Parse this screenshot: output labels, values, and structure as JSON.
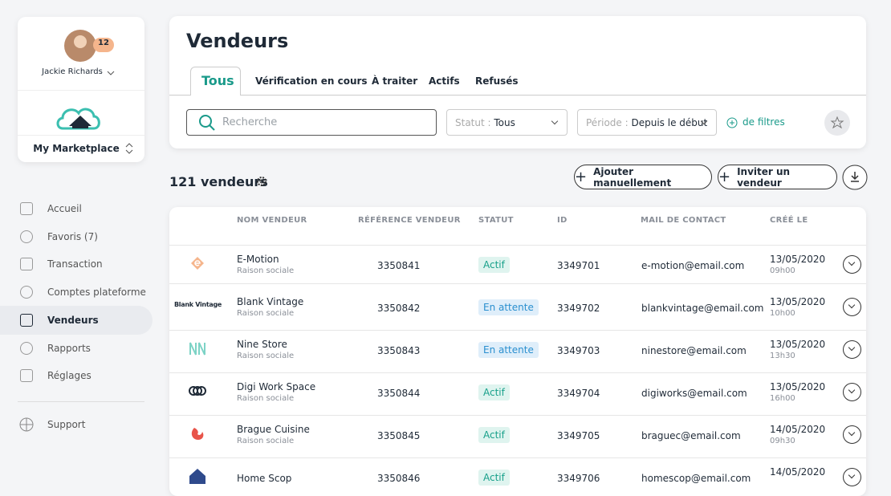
{
  "sidebar": {
    "user": {
      "name": "Jackie Richards",
      "badge": 12
    },
    "workspace": "My Marketplace",
    "nav": [
      "Accueil",
      "Favoris (7)",
      "Transaction",
      "Comptes plateforme",
      "Vendeurs",
      "Rapports",
      "Réglages"
    ],
    "active": "Vendeurs",
    "support": "Support"
  },
  "header": {
    "title": "Vendeurs",
    "tabs": [
      "Tous",
      "Vérification en cours",
      "À traiter",
      "Actifs",
      "Refusés"
    ],
    "search_placeholder": "Recherche",
    "filters": [
      {
        "label": "Statut",
        "value": "Tous"
      },
      {
        "label": "Période",
        "value": "Depuis le début"
      }
    ],
    "more_filters": "de filtres"
  },
  "toolbar": {
    "count": "121 vendeurs",
    "actions": [
      "Ajouter manuellement",
      "Inviter un vendeur"
    ]
  },
  "table": {
    "columns": [
      "NOM VENDEUR",
      "RÉFÉRENCE VENDEUR",
      "STATUT",
      "ID",
      "MAIL DE CONTACT",
      "CRÉÉ LE"
    ],
    "rows": [
      {
        "name": "E-Motion",
        "subtitle": "Raison sociale",
        "reference": "3350841",
        "status": "Actif",
        "id": "3349701",
        "email": "e-motion@email.com",
        "date": "13/05/2020",
        "time": "09h00"
      },
      {
        "logo_text": "Blank Vintage",
        "name": "Blank Vintage",
        "subtitle": "Raison sociale",
        "reference": "3350842",
        "status": "En attente",
        "id": "3349702",
        "email": "blankvintage@email.com",
        "date": "13/05/2020",
        "time": "10h00"
      },
      {
        "name": "Nine Store",
        "subtitle": "Raison sociale",
        "reference": "3350843",
        "status": "En attente",
        "id": "3349703",
        "email": "ninestore@email.com",
        "date": "13/05/2020",
        "time": "13h30"
      },
      {
        "name": "Digi Work Space",
        "subtitle": "Raison sociale",
        "reference": "3350844",
        "status": "Actif",
        "id": "3349704",
        "email": "digiworks@email.com",
        "date": "13/05/2020",
        "time": "16h00"
      },
      {
        "name": "Brague Cuisine",
        "subtitle": "Raison sociale",
        "reference": "3350845",
        "status": "Actif",
        "id": "3349705",
        "email": "braguec@email.com",
        "date": "14/05/2020",
        "time": "09h30"
      },
      {
        "name": "Home Scop",
        "reference": "3350846",
        "status": "Actif",
        "id": "3349706",
        "email": "homescop@email.com",
        "date": "14/05/2020"
      }
    ]
  }
}
